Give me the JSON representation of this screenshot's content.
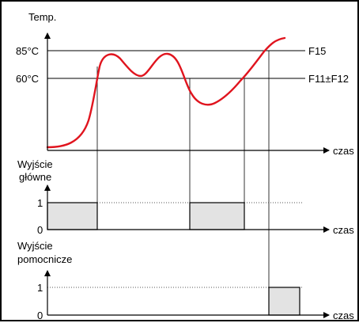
{
  "colors": {
    "curve": "#e0141e",
    "axis": "#000000",
    "pulse_fill": "#e3e3e3",
    "dotted_level": "#555555"
  },
  "temperature_chart": {
    "y_title": "Temp.",
    "x_title": "czas",
    "levels": [
      {
        "value_label": "85°C",
        "name": "F15"
      },
      {
        "value_label": "60°C",
        "name": "F11±F12"
      }
    ]
  },
  "main_output": {
    "title_line1": "Wyjście",
    "title_line2": "główne",
    "level_high": "1",
    "level_low": "0",
    "x_title": "czas"
  },
  "aux_output": {
    "title_line1": "Wyjście",
    "title_line2": "pomocnicze",
    "level_high": "1",
    "level_low": "0",
    "x_title": "czas"
  }
}
